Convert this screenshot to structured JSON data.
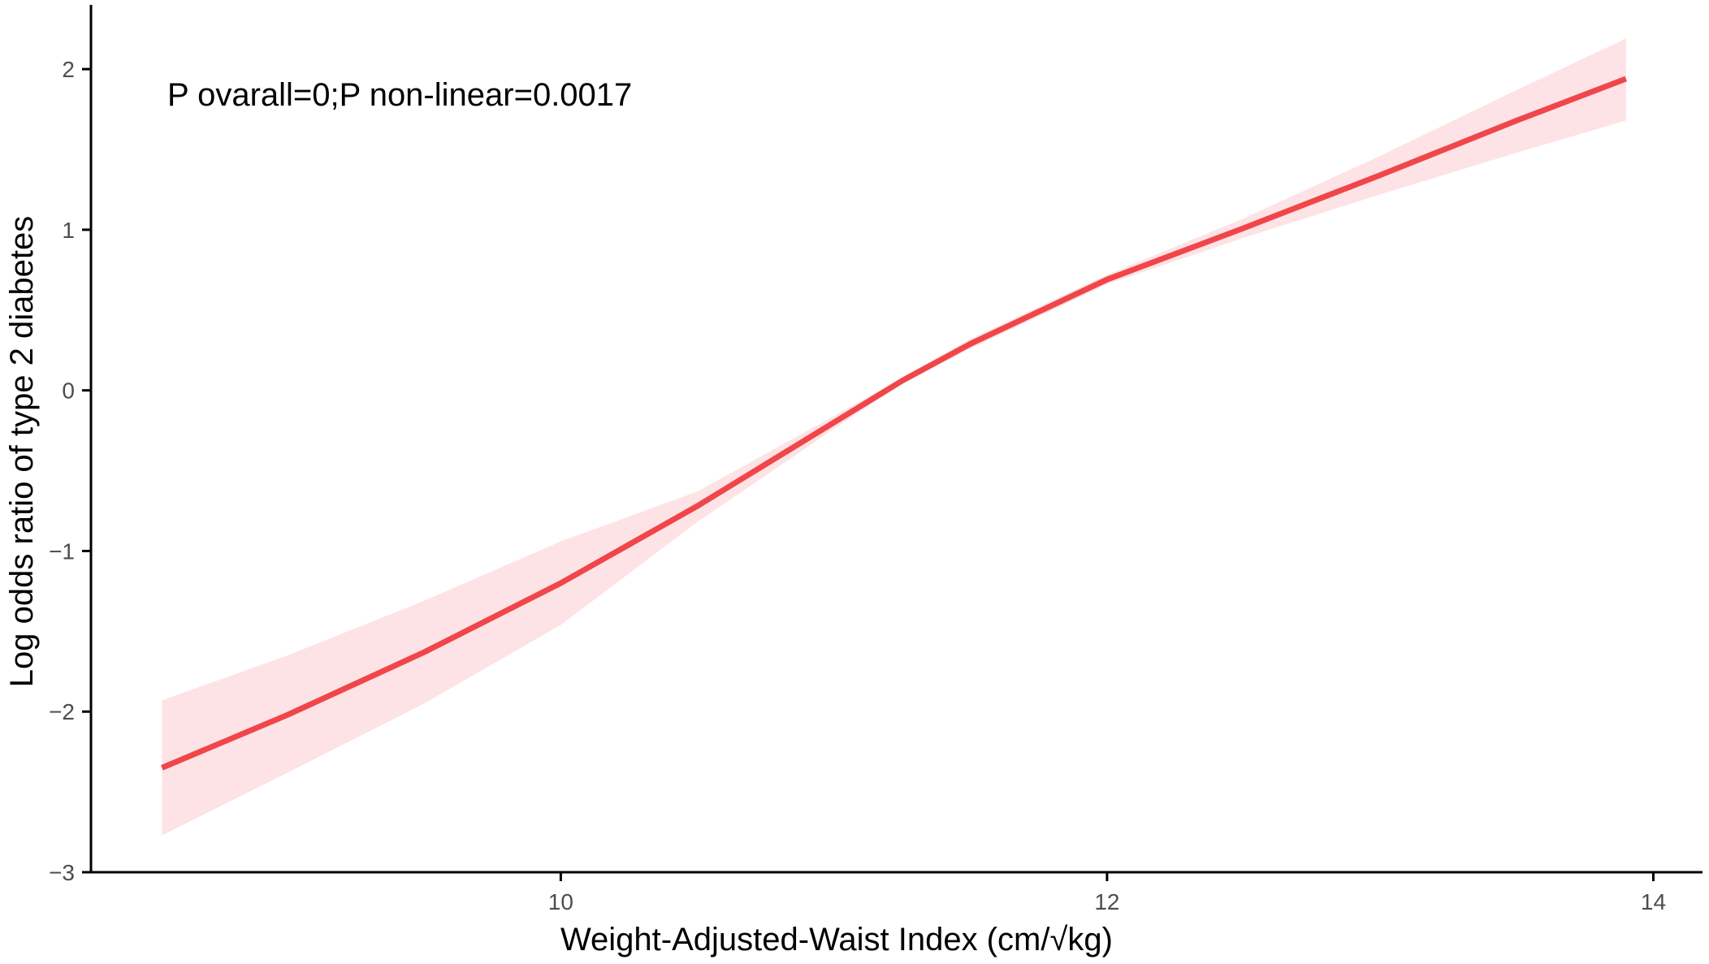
{
  "chart_data": {
    "type": "line",
    "xlabel": "Weight-Adjusted-Waist Index   (cm/√kg)",
    "ylabel": "Log odds ratio of type 2 diabetes",
    "annotation": "P ovarall=0;P non-linear=0.0017",
    "xlim": [
      8.28,
      14.18
    ],
    "ylim": [
      -3.0,
      2.4
    ],
    "x_ticks": [
      10,
      12,
      14
    ],
    "y_ticks": [
      -3,
      -2,
      -1,
      0,
      1,
      2
    ],
    "x_tick_labels": [
      "10",
      "12",
      "14"
    ],
    "y_tick_labels": [
      "−3",
      "−2",
      "−1",
      "0",
      "1",
      "2"
    ],
    "grid": false,
    "legend": "none",
    "line_color": "#f0464a",
    "ci_color": "#fde3e5",
    "axis_color": "#000000",
    "series": [
      {
        "x": [
          8.54,
          9.0,
          9.5,
          10.0,
          10.5,
          11.0,
          11.25,
          11.5,
          12.0,
          12.5,
          13.0,
          13.5,
          13.9
        ],
        "y": [
          -2.35,
          -2.02,
          -1.63,
          -1.2,
          -0.72,
          -0.2,
          0.06,
          0.29,
          0.69,
          1.01,
          1.34,
          1.68,
          1.94
        ],
        "lower": [
          -2.77,
          -2.38,
          -1.95,
          -1.46,
          -0.82,
          -0.24,
          0.04,
          0.26,
          0.66,
          0.95,
          1.22,
          1.48,
          1.68
        ],
        "upper": [
          -1.93,
          -1.65,
          -1.31,
          -0.94,
          -0.63,
          -0.16,
          0.08,
          0.32,
          0.72,
          1.07,
          1.46,
          1.87,
          2.19
        ]
      }
    ]
  }
}
